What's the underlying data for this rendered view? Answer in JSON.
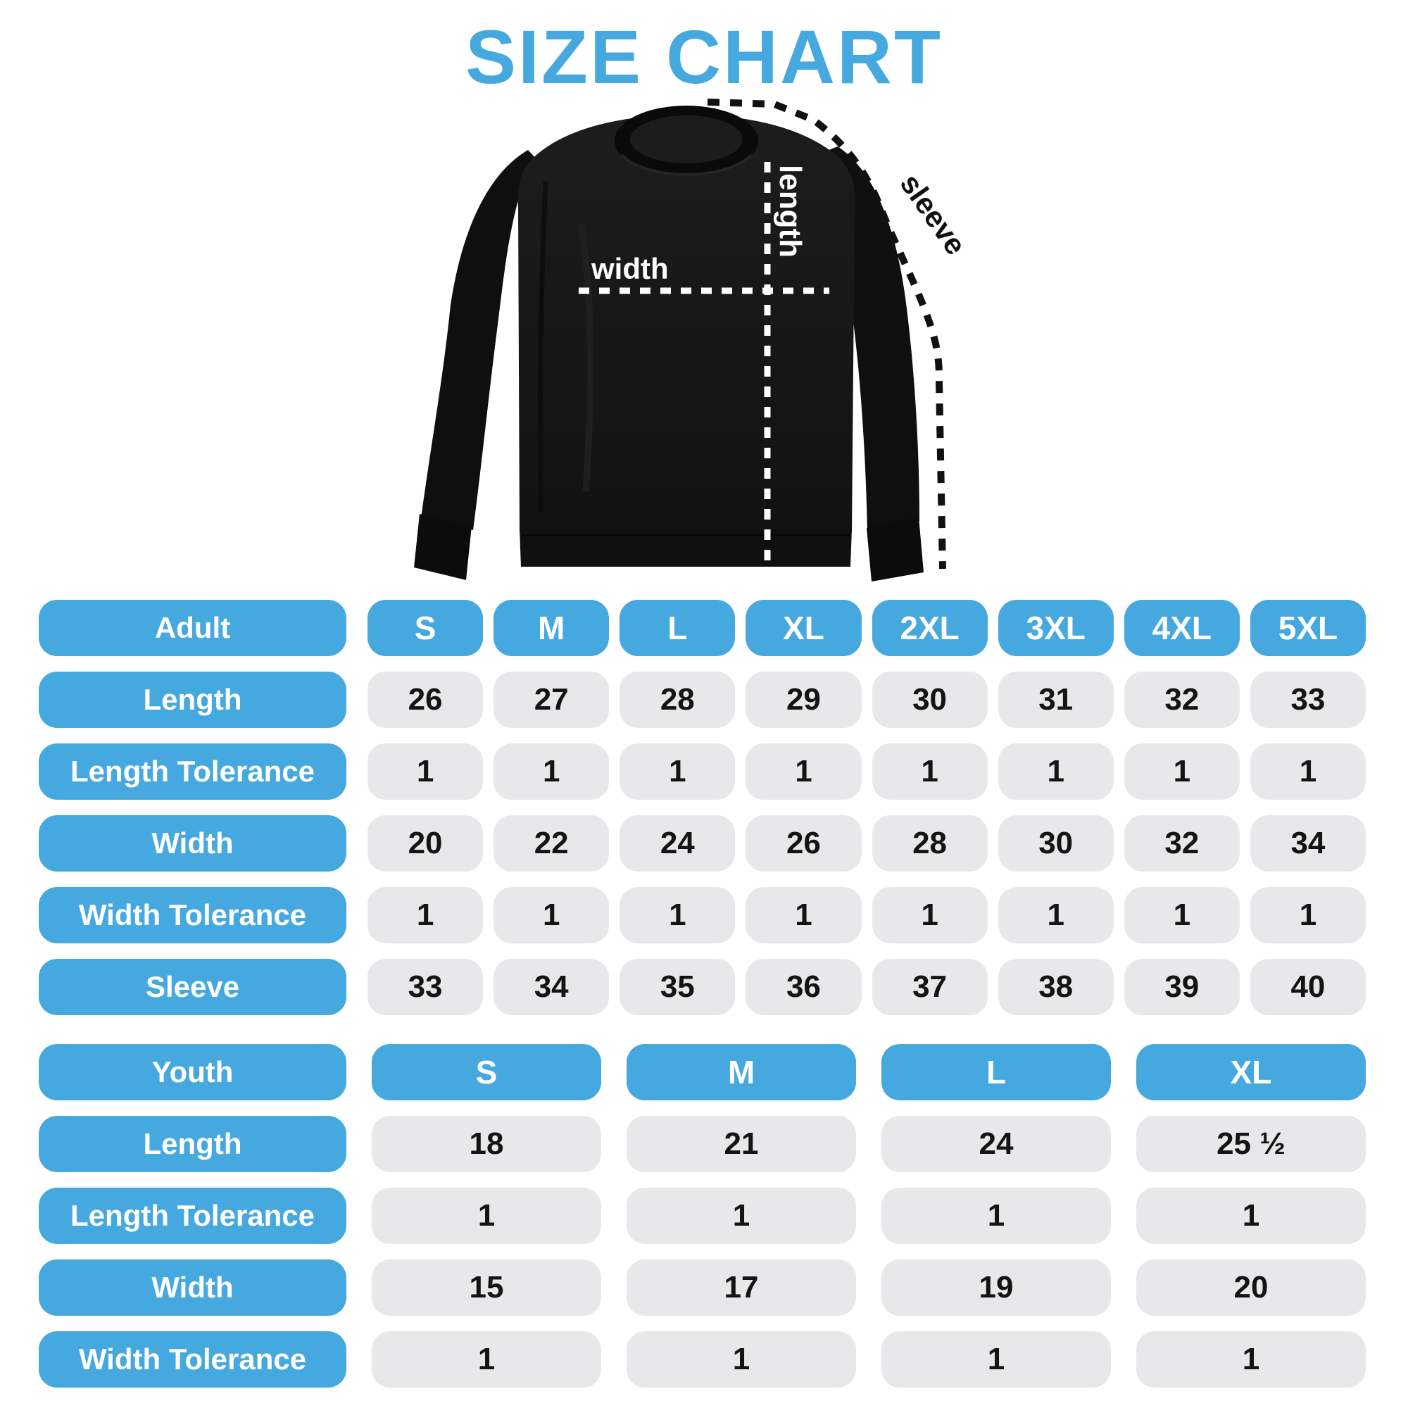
{
  "title": "SIZE CHART",
  "colors": {
    "accent": "#45A8DE",
    "cell_gray": "#E8E8EA",
    "number_ink": "#141414",
    "garment_black": "#161616",
    "background": "#FFFFFF"
  },
  "diagram": {
    "garment": "black-crewneck-sweatshirt",
    "labels": {
      "length": "length",
      "width": "width",
      "sleeve": "sleeve"
    }
  },
  "chart_data": [
    {
      "type": "table",
      "name": "Adult",
      "header": [
        "Adult",
        "S",
        "M",
        "L",
        "XL",
        "2XL",
        "3XL",
        "4XL",
        "5XL"
      ],
      "rows": [
        {
          "label": "Length",
          "values": [
            "26",
            "27",
            "28",
            "29",
            "30",
            "31",
            "32",
            "33"
          ]
        },
        {
          "label": "Length Tolerance",
          "values": [
            "1",
            "1",
            "1",
            "1",
            "1",
            "1",
            "1",
            "1"
          ]
        },
        {
          "label": "Width",
          "values": [
            "20",
            "22",
            "24",
            "26",
            "28",
            "30",
            "32",
            "34"
          ]
        },
        {
          "label": "Width Tolerance",
          "values": [
            "1",
            "1",
            "1",
            "1",
            "1",
            "1",
            "1",
            "1"
          ]
        },
        {
          "label": "Sleeve",
          "values": [
            "33",
            "34",
            "35",
            "36",
            "37",
            "38",
            "39",
            "40"
          ]
        }
      ]
    },
    {
      "type": "table",
      "name": "Youth",
      "header": [
        "Youth",
        "S",
        "M",
        "L",
        "XL"
      ],
      "rows": [
        {
          "label": "Length",
          "values": [
            "18",
            "21",
            "24",
            "25 ½"
          ]
        },
        {
          "label": "Length Tolerance",
          "values": [
            "1",
            "1",
            "1",
            "1"
          ]
        },
        {
          "label": "Width",
          "values": [
            "15",
            "17",
            "19",
            "20"
          ]
        },
        {
          "label": "Width Tolerance",
          "values": [
            "1",
            "1",
            "1",
            "1"
          ]
        }
      ]
    }
  ]
}
